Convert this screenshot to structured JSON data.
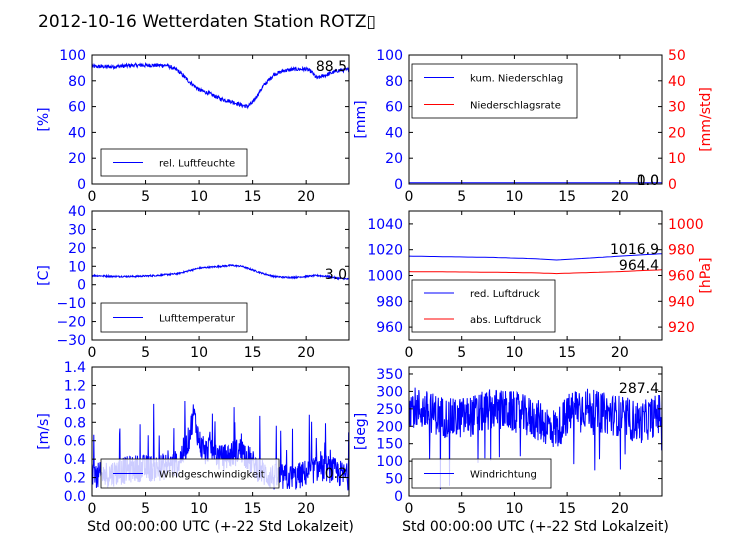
{
  "figure": {
    "title": "2012-10-16 Wetterdaten Station ROTZ▯"
  },
  "colors": {
    "left": "#0000ff",
    "right": "#ff0000",
    "axis": "#000000",
    "bg": "#ffffff"
  },
  "chart_data": [
    {
      "id": "humidity",
      "type": "line",
      "xlim": [
        0,
        24
      ],
      "xticks": [
        "0",
        "5",
        "10",
        "15",
        "20"
      ],
      "xtick_values": [
        0,
        5,
        10,
        15,
        20
      ],
      "ylim": [
        0,
        100
      ],
      "yticks": [
        "0",
        "20",
        "40",
        "60",
        "80",
        "100"
      ],
      "ytick_values": [
        0,
        20,
        40,
        60,
        80,
        100
      ],
      "ylabel": "[%]",
      "xlabel": "",
      "legend_placement": "lower-left",
      "annotations": [
        "88.5"
      ],
      "series": [
        {
          "name": "rel. Luftfeuchte",
          "color": "#0000ff",
          "noise": 1.5,
          "x": [
            0,
            2,
            4,
            5,
            7,
            8,
            9,
            10,
            11,
            12,
            13,
            14,
            14.5,
            15,
            16,
            17,
            18,
            19,
            20,
            20.5,
            21,
            22,
            23,
            24
          ],
          "y": [
            91,
            91,
            92,
            92,
            92,
            88,
            80,
            73,
            70,
            66,
            64,
            61,
            60,
            63,
            76,
            85,
            88,
            89,
            89,
            87,
            82,
            85,
            88,
            88.5
          ]
        }
      ]
    },
    {
      "id": "precip",
      "type": "line",
      "xlim": [
        0,
        24
      ],
      "xticks": [
        "0",
        "5",
        "10",
        "15",
        "20"
      ],
      "xtick_values": [
        0,
        5,
        10,
        15,
        20
      ],
      "ylim": [
        0,
        100
      ],
      "yticks": [
        "0",
        "20",
        "40",
        "60",
        "80",
        "100"
      ],
      "ytick_values": [
        0,
        20,
        40,
        60,
        80,
        100
      ],
      "ylabel": "[mm]",
      "ylim2": [
        0,
        50
      ],
      "yticks2": [
        "0",
        "10",
        "20",
        "30",
        "40",
        "50"
      ],
      "ytick_values2": [
        0,
        10,
        20,
        30,
        40,
        50
      ],
      "ylabel2": "[mm/std]",
      "xlabel": "",
      "legend_placement": "upper-left",
      "annotations": [
        "1.0",
        "0.0"
      ],
      "series": [
        {
          "name": "kum. Niederschlag",
          "color": "#0000ff",
          "axis": "left",
          "noise": 0,
          "x": [
            0,
            24
          ],
          "y": [
            1,
            1
          ]
        },
        {
          "name": "Niederschlagsrate",
          "color": "#ff0000",
          "axis": "right",
          "noise": 0,
          "x": [
            0,
            24
          ],
          "y": [
            0,
            0
          ]
        }
      ]
    },
    {
      "id": "temperature",
      "type": "line",
      "xlim": [
        0,
        24
      ],
      "xticks": [
        "0",
        "5",
        "10",
        "15",
        "20"
      ],
      "xtick_values": [
        0,
        5,
        10,
        15,
        20
      ],
      "ylim": [
        -30,
        40
      ],
      "yticks": [
        "−30",
        "−20",
        "−10",
        "0",
        "10",
        "20",
        "30",
        "40"
      ],
      "ytick_values": [
        -30,
        -20,
        -10,
        0,
        10,
        20,
        30,
        40
      ],
      "ylabel": "[C]",
      "xlabel": "",
      "legend_placement": "lower-left",
      "annotations": [
        "3.0"
      ],
      "series": [
        {
          "name": "Lufttemperatur",
          "color": "#0000ff",
          "noise": 0.4,
          "x": [
            0,
            2,
            4,
            6,
            8,
            9,
            10,
            12,
            13,
            14,
            15,
            16,
            17,
            18,
            19,
            20,
            21,
            22,
            23,
            24
          ],
          "y": [
            5,
            4.5,
            4.5,
            5,
            6,
            7.5,
            9,
            10,
            10.5,
            10,
            8,
            6,
            4.5,
            4,
            4,
            4.5,
            5,
            4.5,
            3.5,
            3.0
          ]
        }
      ]
    },
    {
      "id": "pressure",
      "type": "line",
      "xlim": [
        0,
        24
      ],
      "xticks": [
        "0",
        "5",
        "10",
        "15",
        "20"
      ],
      "xtick_values": [
        0,
        5,
        10,
        15,
        20
      ],
      "ylim": [
        950,
        1050
      ],
      "yticks": [
        "960",
        "980",
        "1000",
        "1020",
        "1040"
      ],
      "ytick_values": [
        960,
        980,
        1000,
        1020,
        1040
      ],
      "ylabel": "",
      "ylim2": [
        910,
        1010
      ],
      "yticks2": [
        "920",
        "940",
        "960",
        "980",
        "1000"
      ],
      "ytick_values2": [
        920,
        940,
        960,
        980,
        1000
      ],
      "ylabel2": "[hPa]",
      "xlabel": "",
      "legend_placement": "lower-left",
      "annotations": [
        "1016.9",
        "964.4"
      ],
      "series": [
        {
          "name": "red. Luftdruck",
          "color": "#0000ff",
          "axis": "left",
          "noise": 0,
          "x": [
            0,
            4,
            8,
            10,
            12,
            14,
            16,
            18,
            20,
            22,
            24
          ],
          "y": [
            1015,
            1014.5,
            1014,
            1013.5,
            1013,
            1012,
            1013,
            1014,
            1015,
            1016,
            1016.9
          ]
        },
        {
          "name": "abs. Luftdruck",
          "color": "#ff0000",
          "axis": "right",
          "noise": 0,
          "x": [
            0,
            4,
            8,
            10,
            12,
            14,
            16,
            18,
            20,
            22,
            24
          ],
          "y": [
            963,
            962.8,
            962.5,
            962.3,
            962,
            961.5,
            962,
            962.5,
            963,
            963.8,
            964.4
          ]
        }
      ]
    },
    {
      "id": "wind",
      "type": "line",
      "xlim": [
        0,
        24
      ],
      "xticks": [
        "0",
        "5",
        "10",
        "15",
        "20"
      ],
      "xtick_values": [
        0,
        5,
        10,
        15,
        20
      ],
      "ylim": [
        0,
        1.4
      ],
      "yticks": [
        "0.0",
        "0.2",
        "0.4",
        "0.6",
        "0.8",
        "1.0",
        "1.2",
        "1.4"
      ],
      "ytick_values": [
        0,
        0.2,
        0.4,
        0.6,
        0.8,
        1.0,
        1.2,
        1.4
      ],
      "ylabel": "[m/s]",
      "xlabel": "Std 00:00:00 UTC (+-22 Std Lokalzeit)",
      "legend_placement": "lower-left",
      "annotations": [
        "0.2"
      ],
      "series": [
        {
          "name": "Windgeschwindigkeit",
          "color": "#0000ff",
          "noise": 0.15,
          "x": [
            0,
            2,
            4,
            6,
            8,
            9,
            9.5,
            10,
            10.5,
            11,
            12,
            13,
            14,
            15,
            16,
            17,
            18,
            19,
            20,
            21,
            22,
            23,
            24
          ],
          "y": [
            0.2,
            0.25,
            0.3,
            0.3,
            0.35,
            0.6,
            0.9,
            0.6,
            0.45,
            0.55,
            0.4,
            0.45,
            0.5,
            0.35,
            0.25,
            0.2,
            0.2,
            0.2,
            0.25,
            0.3,
            0.3,
            0.25,
            0.2
          ]
        }
      ]
    },
    {
      "id": "direction",
      "type": "line",
      "xlim": [
        0,
        24
      ],
      "xticks": [
        "0",
        "5",
        "10",
        "15",
        "20"
      ],
      "xtick_values": [
        0,
        5,
        10,
        15,
        20
      ],
      "ylim": [
        0,
        370
      ],
      "yticks": [
        "0",
        "50",
        "100",
        "150",
        "200",
        "250",
        "300",
        "350"
      ],
      "ytick_values": [
        0,
        50,
        100,
        150,
        200,
        250,
        300,
        350
      ],
      "ylabel": "[deg]",
      "xlabel": "Std 00:00:00 UTC (+-22 Std Lokalzeit)",
      "legend_placement": "lower-left",
      "annotations": [
        "287.4"
      ],
      "series": [
        {
          "name": "Windrichtung",
          "color": "#0000ff",
          "noise": 60,
          "x": [
            0,
            2,
            4,
            6,
            8,
            10,
            12,
            14,
            15,
            16,
            18,
            20,
            22,
            24
          ],
          "y": [
            260,
            240,
            220,
            230,
            250,
            240,
            220,
            190,
            230,
            260,
            240,
            230,
            210,
            240
          ]
        }
      ]
    }
  ]
}
